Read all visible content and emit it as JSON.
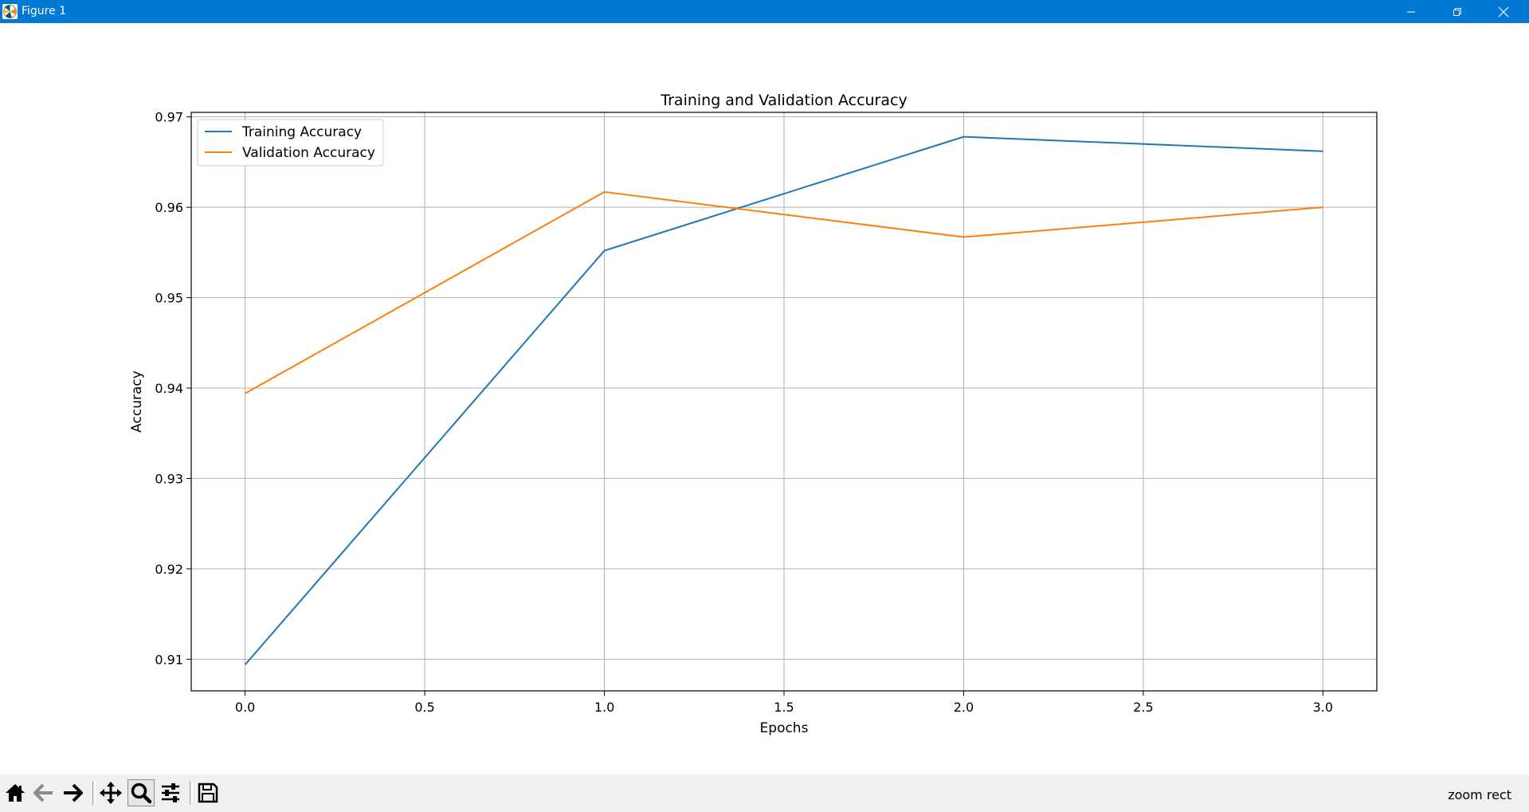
{
  "window": {
    "title": "Figure 1",
    "controls": [
      "minimize-icon",
      "restore-icon",
      "close-icon"
    ]
  },
  "chart_data": {
    "type": "line",
    "title": "Training and Validation Accuracy",
    "xlabel": "Epochs",
    "ylabel": "Accuracy",
    "x": [
      0,
      1,
      2,
      3
    ],
    "series": [
      {
        "name": "Training Accuracy",
        "color": "#1f77b4",
        "values": [
          0.9094,
          0.9552,
          0.9678,
          0.9662
        ]
      },
      {
        "name": "Validation Accuracy",
        "color": "#ff7f0e",
        "values": [
          0.9394,
          0.9617,
          0.9567,
          0.96
        ]
      }
    ],
    "xlim": [
      -0.15,
      3.15
    ],
    "ylim": [
      0.9065,
      0.9705
    ],
    "xticks": [
      0.0,
      0.5,
      1.0,
      1.5,
      2.0,
      2.5,
      3.0
    ],
    "xtick_labels": [
      "0.0",
      "0.5",
      "1.0",
      "1.5",
      "2.0",
      "2.5",
      "3.0"
    ],
    "yticks": [
      0.91,
      0.92,
      0.93,
      0.94,
      0.95,
      0.96,
      0.97
    ],
    "ytick_labels": [
      "0.91",
      "0.92",
      "0.93",
      "0.94",
      "0.95",
      "0.96",
      "0.97"
    ],
    "grid": true,
    "legend_position": "upper-left"
  },
  "toolbar": {
    "buttons": [
      {
        "name": "home-button",
        "icon": "home-icon"
      },
      {
        "name": "back-button",
        "icon": "arrow-left-icon"
      },
      {
        "name": "forward-button",
        "icon": "arrow-right-icon"
      },
      {
        "name": "pan-button",
        "icon": "move-icon"
      },
      {
        "name": "zoom-button",
        "icon": "magnifier-icon",
        "active": true
      },
      {
        "name": "configure-subplots-button",
        "icon": "sliders-icon"
      },
      {
        "name": "save-button",
        "icon": "floppy-disk-icon"
      }
    ],
    "status": "zoom rect"
  }
}
